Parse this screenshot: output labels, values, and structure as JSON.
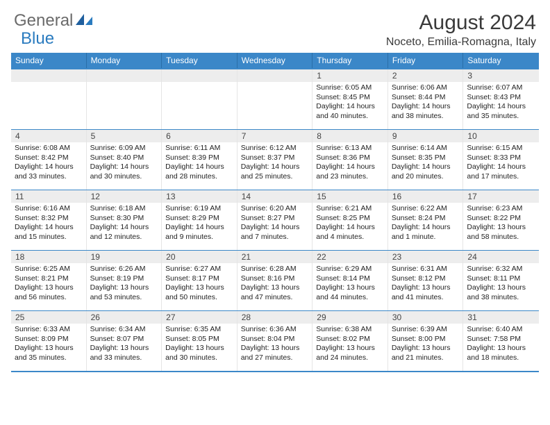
{
  "logo": {
    "text_left": "General",
    "text_right": "Blue",
    "text_color": "#6a6a6a",
    "accent_color": "#2a7bbf"
  },
  "header": {
    "title": "August 2024",
    "location": "Noceto, Emilia-Romagna, Italy",
    "title_fontsize": 30,
    "location_fontsize": 16
  },
  "colors": {
    "header_bg": "#3b87c8",
    "header_text": "#ffffff",
    "daynum_bg": "#ededed",
    "border": "#3b87c8",
    "cell_border": "#e5e5e5",
    "body_text": "#222222"
  },
  "day_names": [
    "Sunday",
    "Monday",
    "Tuesday",
    "Wednesday",
    "Thursday",
    "Friday",
    "Saturday"
  ],
  "weeks": [
    [
      {
        "num": "",
        "sunrise": "",
        "sunset": "",
        "daylight": ""
      },
      {
        "num": "",
        "sunrise": "",
        "sunset": "",
        "daylight": ""
      },
      {
        "num": "",
        "sunrise": "",
        "sunset": "",
        "daylight": ""
      },
      {
        "num": "",
        "sunrise": "",
        "sunset": "",
        "daylight": ""
      },
      {
        "num": "1",
        "sunrise": "Sunrise: 6:05 AM",
        "sunset": "Sunset: 8:45 PM",
        "daylight": "Daylight: 14 hours and 40 minutes."
      },
      {
        "num": "2",
        "sunrise": "Sunrise: 6:06 AM",
        "sunset": "Sunset: 8:44 PM",
        "daylight": "Daylight: 14 hours and 38 minutes."
      },
      {
        "num": "3",
        "sunrise": "Sunrise: 6:07 AM",
        "sunset": "Sunset: 8:43 PM",
        "daylight": "Daylight: 14 hours and 35 minutes."
      }
    ],
    [
      {
        "num": "4",
        "sunrise": "Sunrise: 6:08 AM",
        "sunset": "Sunset: 8:42 PM",
        "daylight": "Daylight: 14 hours and 33 minutes."
      },
      {
        "num": "5",
        "sunrise": "Sunrise: 6:09 AM",
        "sunset": "Sunset: 8:40 PM",
        "daylight": "Daylight: 14 hours and 30 minutes."
      },
      {
        "num": "6",
        "sunrise": "Sunrise: 6:11 AM",
        "sunset": "Sunset: 8:39 PM",
        "daylight": "Daylight: 14 hours and 28 minutes."
      },
      {
        "num": "7",
        "sunrise": "Sunrise: 6:12 AM",
        "sunset": "Sunset: 8:37 PM",
        "daylight": "Daylight: 14 hours and 25 minutes."
      },
      {
        "num": "8",
        "sunrise": "Sunrise: 6:13 AM",
        "sunset": "Sunset: 8:36 PM",
        "daylight": "Daylight: 14 hours and 23 minutes."
      },
      {
        "num": "9",
        "sunrise": "Sunrise: 6:14 AM",
        "sunset": "Sunset: 8:35 PM",
        "daylight": "Daylight: 14 hours and 20 minutes."
      },
      {
        "num": "10",
        "sunrise": "Sunrise: 6:15 AM",
        "sunset": "Sunset: 8:33 PM",
        "daylight": "Daylight: 14 hours and 17 minutes."
      }
    ],
    [
      {
        "num": "11",
        "sunrise": "Sunrise: 6:16 AM",
        "sunset": "Sunset: 8:32 PM",
        "daylight": "Daylight: 14 hours and 15 minutes."
      },
      {
        "num": "12",
        "sunrise": "Sunrise: 6:18 AM",
        "sunset": "Sunset: 8:30 PM",
        "daylight": "Daylight: 14 hours and 12 minutes."
      },
      {
        "num": "13",
        "sunrise": "Sunrise: 6:19 AM",
        "sunset": "Sunset: 8:29 PM",
        "daylight": "Daylight: 14 hours and 9 minutes."
      },
      {
        "num": "14",
        "sunrise": "Sunrise: 6:20 AM",
        "sunset": "Sunset: 8:27 PM",
        "daylight": "Daylight: 14 hours and 7 minutes."
      },
      {
        "num": "15",
        "sunrise": "Sunrise: 6:21 AM",
        "sunset": "Sunset: 8:25 PM",
        "daylight": "Daylight: 14 hours and 4 minutes."
      },
      {
        "num": "16",
        "sunrise": "Sunrise: 6:22 AM",
        "sunset": "Sunset: 8:24 PM",
        "daylight": "Daylight: 14 hours and 1 minute."
      },
      {
        "num": "17",
        "sunrise": "Sunrise: 6:23 AM",
        "sunset": "Sunset: 8:22 PM",
        "daylight": "Daylight: 13 hours and 58 minutes."
      }
    ],
    [
      {
        "num": "18",
        "sunrise": "Sunrise: 6:25 AM",
        "sunset": "Sunset: 8:21 PM",
        "daylight": "Daylight: 13 hours and 56 minutes."
      },
      {
        "num": "19",
        "sunrise": "Sunrise: 6:26 AM",
        "sunset": "Sunset: 8:19 PM",
        "daylight": "Daylight: 13 hours and 53 minutes."
      },
      {
        "num": "20",
        "sunrise": "Sunrise: 6:27 AM",
        "sunset": "Sunset: 8:17 PM",
        "daylight": "Daylight: 13 hours and 50 minutes."
      },
      {
        "num": "21",
        "sunrise": "Sunrise: 6:28 AM",
        "sunset": "Sunset: 8:16 PM",
        "daylight": "Daylight: 13 hours and 47 minutes."
      },
      {
        "num": "22",
        "sunrise": "Sunrise: 6:29 AM",
        "sunset": "Sunset: 8:14 PM",
        "daylight": "Daylight: 13 hours and 44 minutes."
      },
      {
        "num": "23",
        "sunrise": "Sunrise: 6:31 AM",
        "sunset": "Sunset: 8:12 PM",
        "daylight": "Daylight: 13 hours and 41 minutes."
      },
      {
        "num": "24",
        "sunrise": "Sunrise: 6:32 AM",
        "sunset": "Sunset: 8:11 PM",
        "daylight": "Daylight: 13 hours and 38 minutes."
      }
    ],
    [
      {
        "num": "25",
        "sunrise": "Sunrise: 6:33 AM",
        "sunset": "Sunset: 8:09 PM",
        "daylight": "Daylight: 13 hours and 35 minutes."
      },
      {
        "num": "26",
        "sunrise": "Sunrise: 6:34 AM",
        "sunset": "Sunset: 8:07 PM",
        "daylight": "Daylight: 13 hours and 33 minutes."
      },
      {
        "num": "27",
        "sunrise": "Sunrise: 6:35 AM",
        "sunset": "Sunset: 8:05 PM",
        "daylight": "Daylight: 13 hours and 30 minutes."
      },
      {
        "num": "28",
        "sunrise": "Sunrise: 6:36 AM",
        "sunset": "Sunset: 8:04 PM",
        "daylight": "Daylight: 13 hours and 27 minutes."
      },
      {
        "num": "29",
        "sunrise": "Sunrise: 6:38 AM",
        "sunset": "Sunset: 8:02 PM",
        "daylight": "Daylight: 13 hours and 24 minutes."
      },
      {
        "num": "30",
        "sunrise": "Sunrise: 6:39 AM",
        "sunset": "Sunset: 8:00 PM",
        "daylight": "Daylight: 13 hours and 21 minutes."
      },
      {
        "num": "31",
        "sunrise": "Sunrise: 6:40 AM",
        "sunset": "Sunset: 7:58 PM",
        "daylight": "Daylight: 13 hours and 18 minutes."
      }
    ]
  ]
}
